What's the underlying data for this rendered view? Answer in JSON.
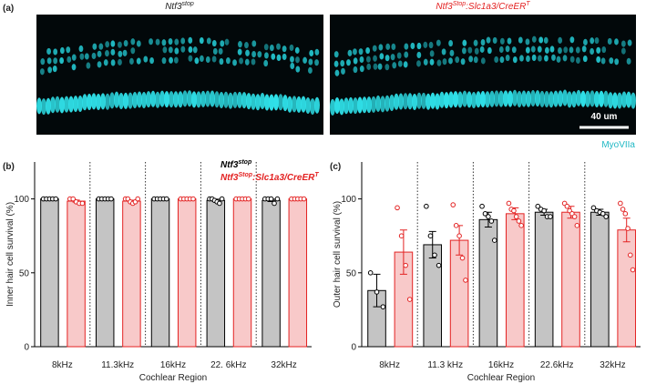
{
  "figure": {
    "panel_a": {
      "label": "(a)",
      "left_title": [
        "Ntf3",
        "stop"
      ],
      "right_title": [
        "Ntf3",
        "Stop",
        ":Slc1a3/CreER",
        "T"
      ],
      "scale_bar": "40 um",
      "stain": "MyoVIIa"
    }
  },
  "chart_data": [
    {
      "type": "bar",
      "panel_label": "(b)",
      "y_label": "Inner hair cell survival (%)",
      "x_label": "Cochlear Region",
      "categories": [
        "8kHz",
        "11.3kHz",
        "16kHz",
        "22. 6kHz",
        "32kHz"
      ],
      "ylim": [
        0,
        125
      ],
      "yticks": [
        0,
        50,
        100
      ],
      "legend": "upper right",
      "series": [
        {
          "name": [
            "Ntf3",
            "stop"
          ],
          "color": "#c4c4c4",
          "edge": "#000000",
          "values": [
            100,
            100,
            100,
            99,
            99
          ],
          "errors": [
            0.3,
            0.3,
            0.2,
            0.8,
            0.8
          ],
          "points": [
            [
              100,
              100,
              100,
              100,
              100
            ],
            [
              100,
              100,
              100,
              100,
              100
            ],
            [
              100,
              100,
              100,
              100,
              100
            ],
            [
              100,
              100,
              99,
              98,
              97,
              100
            ],
            [
              100,
              100,
              100,
              97,
              100
            ]
          ]
        },
        {
          "name": [
            "Ntf3",
            "Stop",
            ":Slc1a3/CreER",
            "T"
          ],
          "color": "#f8c9c9",
          "edge": "#e32222",
          "values": [
            98.5,
            98.5,
            100,
            100,
            100
          ],
          "errors": [
            0.7,
            0.6,
            0.1,
            0.1,
            0.1
          ],
          "points": [
            [
              100,
              100,
              98,
              97,
              97
            ],
            [
              100,
              100,
              98,
              97,
              98,
              100
            ],
            [
              100,
              100,
              100,
              100,
              100
            ],
            [
              100,
              100,
              100,
              100,
              100
            ],
            [
              100,
              100,
              100,
              100,
              100
            ]
          ]
        }
      ]
    },
    {
      "type": "bar",
      "panel_label": "(c)",
      "y_label": "Outer hair cell survival (%)",
      "x_label": "Cochlear Region",
      "categories": [
        "8kHz",
        "11.3 kHz",
        "16kHz",
        "22.6kHz",
        "32kHz"
      ],
      "ylim": [
        0,
        125
      ],
      "yticks": [
        0,
        50,
        100
      ],
      "series": [
        {
          "name": [
            "Ntf3",
            "stop"
          ],
          "color": "#c4c4c4",
          "edge": "#000000",
          "values": [
            38,
            69,
            86,
            91,
            91
          ],
          "errors": [
            11,
            9,
            5,
            2,
            2
          ],
          "points": [
            [
              50,
              37,
              27
            ],
            [
              95,
              75,
              62,
              55
            ],
            [
              95,
              90,
              88,
              85,
              72
            ],
            [
              95,
              93,
              92,
              88,
              88
            ],
            [
              94,
              92,
              91,
              90,
              88
            ]
          ]
        },
        {
          "name": [
            "Ntf3",
            "Stop",
            ":Slc1a3/CreER",
            "T"
          ],
          "color": "#f8c9c9",
          "edge": "#e32222",
          "values": [
            64,
            72,
            90,
            91,
            79
          ],
          "errors": [
            15,
            10,
            4,
            4,
            8
          ],
          "points": [
            [
              94,
              75,
              55,
              32
            ],
            [
              96,
              82,
              75,
              60,
              45
            ],
            [
              97,
              93,
              92,
              88,
              85,
              82
            ],
            [
              97,
              95,
              92,
              90,
              88,
              82
            ],
            [
              97,
              93,
              90,
              80,
              62,
              52
            ]
          ]
        }
      ]
    }
  ]
}
